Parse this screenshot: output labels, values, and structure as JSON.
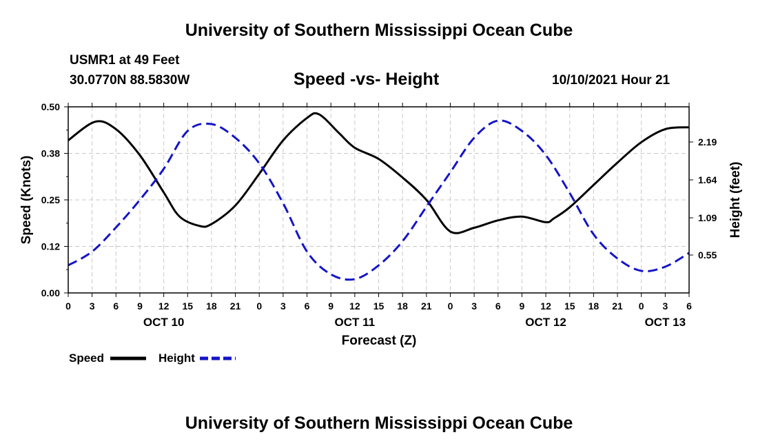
{
  "page": {
    "title_top": "University of Southern Mississippi Ocean Cube",
    "title_bottom": "University of Southern Mississippi Ocean Cube",
    "station": "USMR1 at 49 Feet",
    "coords": "30.0770N  88.5830W",
    "chart_title": "Speed -vs- Height",
    "datetime": "10/10/2021 Hour 21"
  },
  "colors": {
    "speed": "#000000",
    "height": "#1414c8",
    "grid": "#c8c8c8"
  },
  "chart_data": {
    "type": "line",
    "title": "Speed -vs- Height",
    "xlabel": "Forecast (Z)",
    "ylabel": "Speed (Knots)",
    "y2label": "Height (feet)",
    "x_unit": "hours since 10/10 00Z",
    "xlim": [
      0,
      78
    ],
    "ylim": [
      0,
      0.5
    ],
    "y2lim": [
      0,
      2.7
    ],
    "x_ticks": [
      0,
      3,
      6,
      9,
      12,
      15,
      18,
      21,
      24,
      27,
      30,
      33,
      36,
      39,
      42,
      45,
      48,
      51,
      54,
      57,
      60,
      63,
      66,
      69,
      72,
      75,
      78
    ],
    "x_tick_labels": [
      "0",
      "3",
      "6",
      "9",
      "12",
      "15",
      "18",
      "21",
      "0",
      "3",
      "6",
      "9",
      "12",
      "15",
      "18",
      "21",
      "0",
      "3",
      "6",
      "9",
      "12",
      "15",
      "18",
      "21",
      "0",
      "3",
      "6"
    ],
    "date_labels": [
      {
        "label": "OCT 10",
        "x": 12
      },
      {
        "label": "OCT 11",
        "x": 36
      },
      {
        "label": "OCT 12",
        "x": 60
      },
      {
        "label": "OCT 13",
        "x": 75
      }
    ],
    "y_ticks": [
      0,
      0.125,
      0.25,
      0.375,
      0.5
    ],
    "y_tick_labels": [
      "0.00",
      "0.12",
      "0.25",
      "0.38",
      "0.50"
    ],
    "y2_ticks": [
      0.55,
      1.09,
      1.64,
      2.19
    ],
    "y2_tick_labels": [
      "0.55",
      "1.09",
      "1.64",
      "2.19"
    ],
    "grid": true,
    "legend": [
      {
        "name": "Speed",
        "style": "solid"
      },
      {
        "name": "Height",
        "style": "dashed"
      }
    ],
    "series": [
      {
        "name": "Speed",
        "axis": "left",
        "x": [
          0,
          3.4,
          6,
          9,
          12,
          14,
          16.5,
          18,
          21,
          24,
          27,
          30,
          31.5,
          34,
          36,
          39,
          42,
          45,
          48,
          51,
          54,
          57,
          60,
          61,
          63,
          66,
          69,
          72,
          75,
          78
        ],
        "y": [
          0.41,
          0.46,
          0.44,
          0.37,
          0.27,
          0.205,
          0.18,
          0.185,
          0.235,
          0.32,
          0.41,
          0.47,
          0.48,
          0.43,
          0.39,
          0.36,
          0.31,
          0.25,
          0.165,
          0.175,
          0.195,
          0.205,
          0.19,
          0.2,
          0.23,
          0.29,
          0.35,
          0.405,
          0.44,
          0.445
        ]
      },
      {
        "name": "Height",
        "axis": "right",
        "x": [
          0,
          3,
          6,
          9,
          12,
          15,
          18,
          21,
          24,
          27,
          30,
          33,
          36,
          39,
          42,
          45,
          48,
          51,
          54,
          57,
          60,
          63,
          66,
          69,
          72,
          75,
          78
        ],
        "y": [
          0.4,
          0.6,
          0.95,
          1.35,
          1.8,
          2.35,
          2.45,
          2.25,
          1.88,
          1.3,
          0.6,
          0.27,
          0.2,
          0.4,
          0.75,
          1.25,
          1.75,
          2.25,
          2.5,
          2.35,
          2.0,
          1.45,
          0.85,
          0.5,
          0.32,
          0.38,
          0.58
        ]
      }
    ]
  }
}
